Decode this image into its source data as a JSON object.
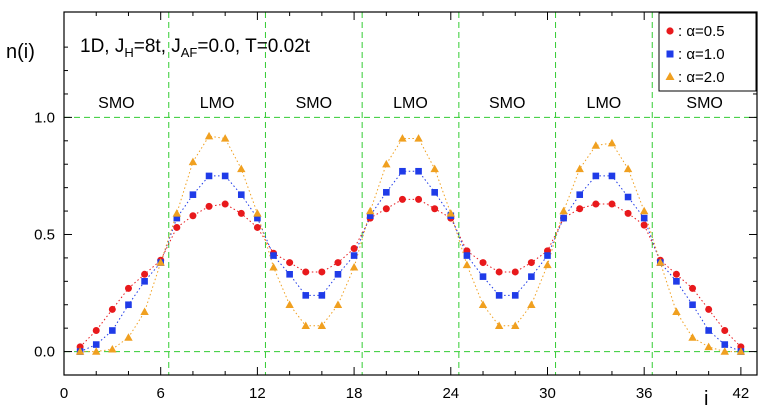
{
  "chart_data": {
    "type": "scatter",
    "title": "",
    "xlabel": "i",
    "ylabel": "n(i)",
    "xlim": [
      0,
      43
    ],
    "ylim": [
      -0.1,
      1.45
    ],
    "x_ticks": [
      "0",
      "6",
      "12",
      "18",
      "24",
      "30",
      "36",
      "42"
    ],
    "y_ticks": [
      "0.0",
      "0.5",
      "1.0"
    ],
    "grid": "dashed green lines at x = 6.5, 12.5, 18.5, 24.5, 30.5, 36.5 and y = 0, 1",
    "region_boundaries": [
      6.5,
      12.5,
      18.5,
      24.5,
      30.5,
      36.5
    ],
    "regions": [
      "SMO",
      "LMO",
      "SMO",
      "LMO",
      "SMO",
      "LMO",
      "SMO"
    ],
    "annotation": {
      "lead": "1D, J",
      "sub1": "H",
      "mid": "=8t, J",
      "sub2": "AF",
      "tail": "=0.0, T=0.02t"
    },
    "legend_position": "top-right",
    "series": [
      {
        "name": ": α=0.5",
        "color": "#e8191c",
        "marker": "circle",
        "x": [
          1,
          2,
          3,
          4,
          5,
          6,
          7,
          8,
          9,
          10,
          11,
          12,
          13,
          14,
          15,
          16,
          17,
          18,
          19,
          20,
          21,
          22,
          23,
          24,
          25,
          26,
          27,
          28,
          29,
          30,
          31,
          32,
          33,
          34,
          35,
          36,
          37,
          38,
          39,
          40,
          41,
          42
        ],
        "y": [
          0.02,
          0.09,
          0.18,
          0.27,
          0.33,
          0.39,
          0.53,
          0.58,
          0.62,
          0.63,
          0.59,
          0.53,
          0.42,
          0.38,
          0.34,
          0.34,
          0.38,
          0.44,
          0.57,
          0.61,
          0.65,
          0.65,
          0.61,
          0.57,
          0.43,
          0.38,
          0.34,
          0.34,
          0.38,
          0.43,
          0.57,
          0.61,
          0.63,
          0.63,
          0.59,
          0.54,
          0.39,
          0.33,
          0.27,
          0.18,
          0.09,
          0.02
        ]
      },
      {
        "name": ": α=1.0",
        "color": "#1f3be8",
        "marker": "square",
        "x": [
          1,
          2,
          3,
          4,
          5,
          6,
          7,
          8,
          9,
          10,
          11,
          12,
          13,
          14,
          15,
          16,
          17,
          18,
          19,
          20,
          21,
          22,
          23,
          24,
          25,
          26,
          27,
          28,
          29,
          30,
          31,
          32,
          33,
          34,
          35,
          36,
          37,
          38,
          39,
          40,
          41,
          42
        ],
        "y": [
          0.0,
          0.03,
          0.09,
          0.2,
          0.3,
          0.38,
          0.57,
          0.67,
          0.75,
          0.75,
          0.67,
          0.57,
          0.41,
          0.33,
          0.24,
          0.24,
          0.33,
          0.41,
          0.58,
          0.68,
          0.77,
          0.77,
          0.68,
          0.58,
          0.41,
          0.32,
          0.24,
          0.24,
          0.32,
          0.41,
          0.57,
          0.67,
          0.75,
          0.75,
          0.66,
          0.57,
          0.38,
          0.3,
          0.2,
          0.09,
          0.03,
          0.0
        ]
      },
      {
        "name": ": α=2.0",
        "color": "#f0a020",
        "marker": "triangle",
        "x": [
          1,
          2,
          3,
          4,
          5,
          6,
          7,
          8,
          9,
          10,
          11,
          12,
          13,
          14,
          15,
          16,
          17,
          18,
          19,
          20,
          21,
          22,
          23,
          24,
          25,
          26,
          27,
          28,
          29,
          30,
          31,
          32,
          33,
          34,
          35,
          36,
          37,
          38,
          39,
          40,
          41,
          42
        ],
        "y": [
          0.0,
          0.0,
          0.01,
          0.06,
          0.17,
          0.38,
          0.59,
          0.81,
          0.92,
          0.91,
          0.78,
          0.59,
          0.36,
          0.2,
          0.11,
          0.11,
          0.2,
          0.36,
          0.6,
          0.8,
          0.91,
          0.91,
          0.78,
          0.59,
          0.37,
          0.2,
          0.11,
          0.11,
          0.2,
          0.37,
          0.6,
          0.78,
          0.88,
          0.89,
          0.78,
          0.6,
          0.38,
          0.17,
          0.06,
          0.02,
          0.0,
          0.0
        ]
      }
    ]
  }
}
